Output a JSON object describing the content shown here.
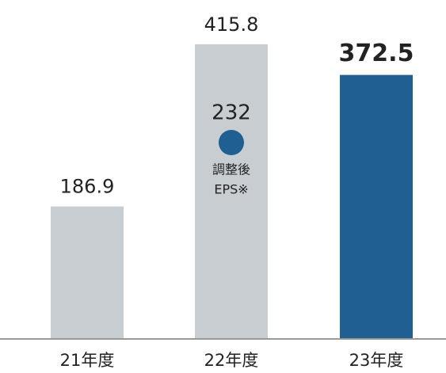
{
  "chart_data": {
    "type": "bar",
    "categories": [
      "21年度",
      "22年度",
      "23年度"
    ],
    "values": [
      186.9,
      415.8,
      372.5
    ],
    "colors": [
      "#c8cdd1",
      "#c8cdd1",
      "#1f5f91"
    ],
    "highlight": 2,
    "annotation": {
      "value": 232,
      "lines": [
        "調整後",
        "EPS※"
      ],
      "color": "#1f5f91"
    }
  }
}
